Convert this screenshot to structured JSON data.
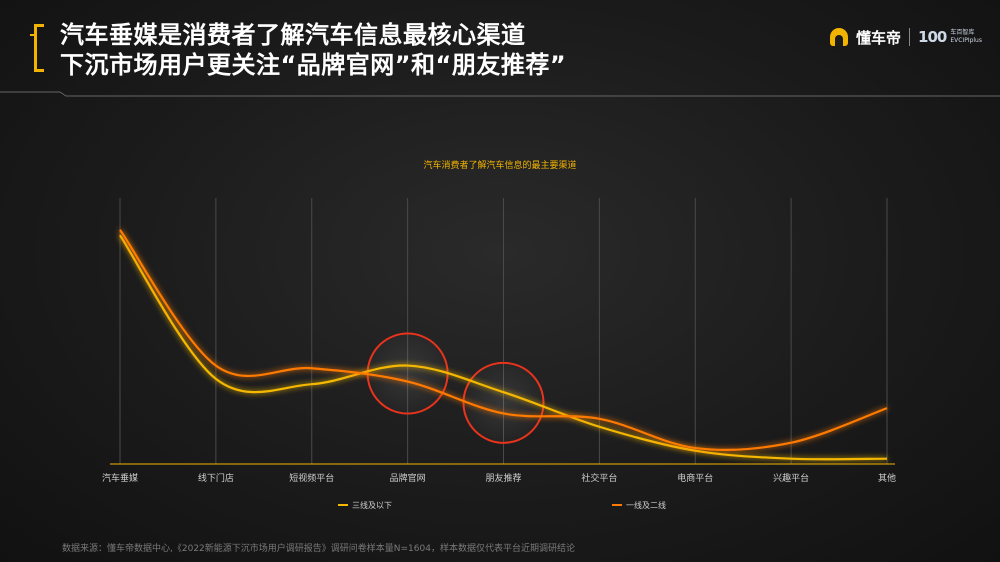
{
  "header": {
    "title_line1": "汽车垂媒是消费者了解汽车信息最核心渠道",
    "title_line2": "下沉市场用户更关注“品牌官网”和“朋友推荐”",
    "brand_name": "懂车帝",
    "brand_mark": "100",
    "brand_sub_cn": "车百智库",
    "brand_sub_en": "EVCIPIplus"
  },
  "source": "数据来源：懂车帝数据中心,《2022新能源下沉市场用户调研报告》调研问卷样本量N=1604，样本数据仅代表平台近期调研结论",
  "colors": {
    "accent": "#f3b400",
    "series_a": "#f5b800",
    "series_b": "#ff7a00",
    "highlight_circle": "#e8341c"
  },
  "chart_data": {
    "type": "line",
    "title": "汽车消费者了解汽车信息的最主要渠道",
    "categories": [
      "汽车垂媒",
      "线下门店",
      "短视频平台",
      "品牌官网",
      "朋友推荐",
      "社交平台",
      "电商平台",
      "兴趣平台",
      "其他"
    ],
    "series": [
      {
        "name": "三线及以下",
        "values": [
          86,
          32,
          30,
          37,
          27,
          14,
          5,
          2,
          2
        ]
      },
      {
        "name": "一线及二线",
        "values": [
          88,
          37,
          36,
          31,
          19,
          17,
          6,
          8,
          21
        ]
      }
    ],
    "ylim": [
      0,
      100
    ],
    "highlighted_categories": [
      "品牌官网",
      "朋友推荐"
    ],
    "legend_position": "bottom",
    "grid": "vertical"
  }
}
